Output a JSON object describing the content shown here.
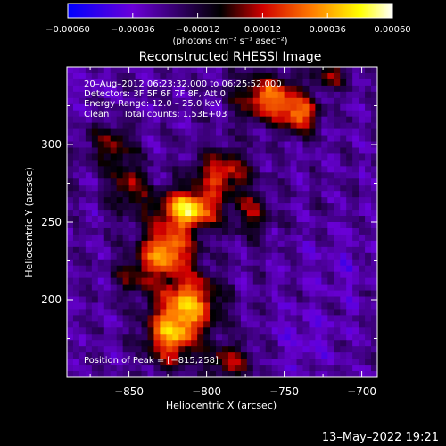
{
  "chart_data": {
    "type": "heatmap",
    "title": "Reconstructed RHESSI Image",
    "xlabel": "Heliocentric X (arcsec)",
    "ylabel": "Heliocentric Y (arcsec)",
    "xlim": [
      -890,
      -690
    ],
    "ylim": [
      150,
      350
    ],
    "x_ticks": [
      -850,
      -800,
      -750,
      -700
    ],
    "x_tick_labels": [
      "−850",
      "−800",
      "−750",
      "−700"
    ],
    "y_ticks": [
      200,
      250,
      300
    ],
    "y_tick_labels": [
      "200",
      "250",
      "300"
    ],
    "colorbar": {
      "range": [
        -0.0006,
        0.0006
      ],
      "ticks": [
        -0.0006,
        -0.00036,
        -0.00012,
        0.00012,
        0.00036,
        0.0006
      ],
      "tick_labels": [
        "−0.00060",
        "−0.00036",
        "−0.00012",
        "0.00012",
        "0.00036",
        "0.00060"
      ],
      "unit_label": "(photons cm⁻² s⁻¹ asec⁻²)",
      "colors": [
        "#0000ff",
        "#6a00d8",
        "#000000",
        "#d00000",
        "#ff7a00",
        "#ffff00",
        "#ffffff"
      ]
    },
    "annotations": [
      "20–Aug–2012 06:23:32.000 to 06:25:52.000",
      "Detectors: 3F 5F 6F 7F 8F, Att 0",
      "Energy Range: 12.0 – 25.0 keV",
      "Clean     Total counts: 1.53E+03"
    ],
    "peak_label": "Position of Peak = [−815,258]",
    "peak": [
      -815,
      258
    ],
    "sources": [
      {
        "x": -812,
        "y": 258,
        "sx": 14,
        "sy": 9,
        "amp": 0.0006
      },
      {
        "x": -826,
        "y": 232,
        "sx": 12,
        "sy": 10,
        "amp": 0.00048
      },
      {
        "x": -812,
        "y": 198,
        "sx": 14,
        "sy": 14,
        "amp": 0.00046
      },
      {
        "x": -823,
        "y": 175,
        "sx": 11,
        "sy": 12,
        "amp": 0.0004
      },
      {
        "x": -760,
        "y": 330,
        "sx": 14,
        "sy": 10,
        "amp": 0.00042
      },
      {
        "x": -740,
        "y": 318,
        "sx": 8,
        "sy": 8,
        "amp": 0.00036
      },
      {
        "x": -790,
        "y": 282,
        "sx": 12,
        "sy": 10,
        "amp": 0.00032
      },
      {
        "x": -850,
        "y": 272,
        "sx": 9,
        "sy": 12,
        "amp": 0.0002
      },
      {
        "x": -862,
        "y": 300,
        "sx": 10,
        "sy": 10,
        "amp": 0.00016
      },
      {
        "x": -845,
        "y": 215,
        "sx": 10,
        "sy": 8,
        "amp": 0.00014
      },
      {
        "x": -770,
        "y": 255,
        "sx": 8,
        "sy": 10,
        "amp": 0.00018
      },
      {
        "x": -785,
        "y": 160,
        "sx": 10,
        "sy": 8,
        "amp": 0.00022
      },
      {
        "x": -720,
        "y": 345,
        "sx": 8,
        "sy": 6,
        "amp": 0.00018
      },
      {
        "x": -712,
        "y": 220,
        "sx": 12,
        "sy": 16,
        "amp": -0.0002
      },
      {
        "x": -735,
        "y": 175,
        "sx": 14,
        "sy": 14,
        "amp": -0.00022
      },
      {
        "x": -875,
        "y": 335,
        "sx": 10,
        "sy": 10,
        "amp": -0.00016
      },
      {
        "x": -725,
        "y": 285,
        "sx": 10,
        "sy": 12,
        "amp": -0.00012
      }
    ]
  },
  "timestamp": "13–May–2022 19:21"
}
